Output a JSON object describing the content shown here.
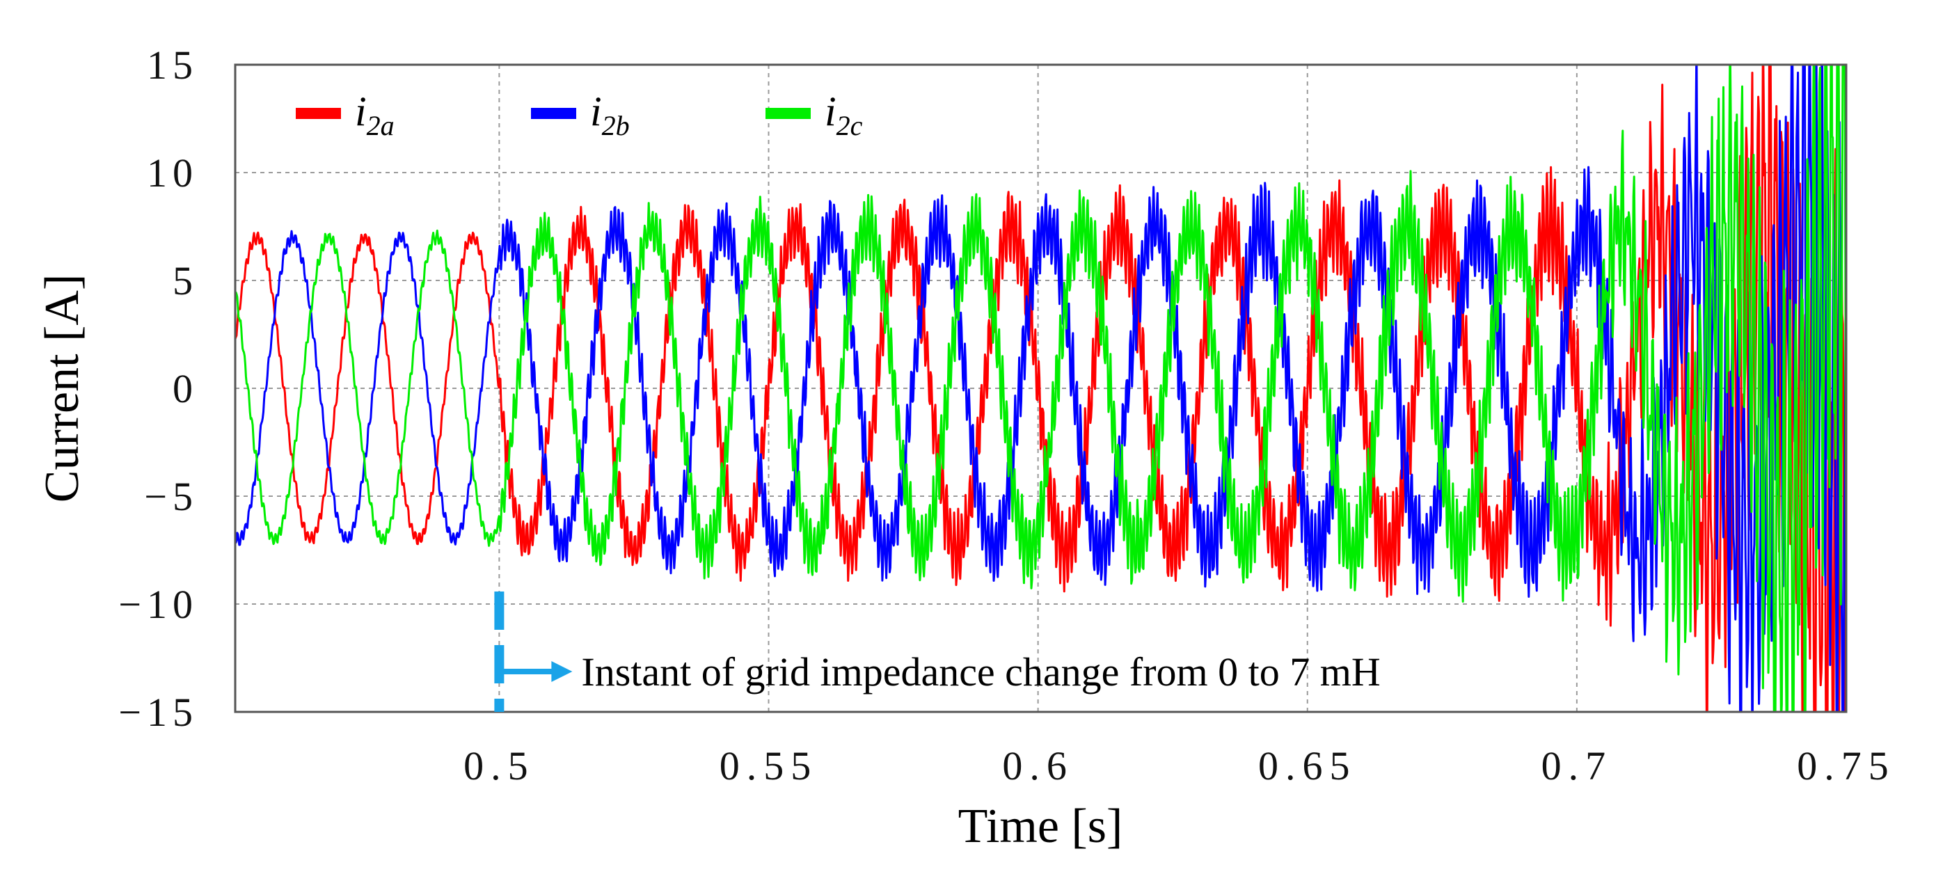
{
  "chart_data": {
    "type": "line",
    "title": "",
    "xlabel": "Time [s]",
    "ylabel": "Current [A]",
    "xlim": [
      0.451,
      0.75
    ],
    "ylim": [
      -15,
      15
    ],
    "x_ticks": [
      0.5,
      0.55,
      0.6,
      0.65,
      0.7,
      0.75
    ],
    "x_tick_labels": [
      "0.5",
      "0.55",
      "0.6",
      "0.65",
      "0.7",
      "0.75"
    ],
    "y_ticks": [
      15,
      10,
      5,
      0,
      -5,
      -10,
      -15
    ],
    "y_tick_labels": [
      "15",
      "10",
      "5",
      "0",
      "−5",
      "−10",
      "−15"
    ],
    "grid": true,
    "legend_position": "top-left",
    "series": [
      {
        "name": "i2a",
        "label_main": "i",
        "label_sub": "2a",
        "color": "#ff0000",
        "frequency_hz": 50,
        "phase_deg": 0,
        "amplitude_pre": 7,
        "amplitude_post": 7.5,
        "ripple_pre": 0.3,
        "ripple_post_start": 1.0,
        "ripple_post_end": 3.0,
        "instability_start": 0.7,
        "instability_growth": 12
      },
      {
        "name": "i2b",
        "label_main": "i",
        "label_sub": "2b",
        "color": "#0000ff",
        "frequency_hz": 50,
        "phase_deg": -120,
        "amplitude_pre": 7,
        "amplitude_post": 7.5,
        "ripple_pre": 0.3,
        "ripple_post_start": 1.0,
        "ripple_post_end": 3.0,
        "instability_start": 0.7,
        "instability_growth": 12
      },
      {
        "name": "i2c",
        "label_main": "i",
        "label_sub": "2c",
        "color": "#00ee00",
        "frequency_hz": 50,
        "phase_deg": 120,
        "amplitude_pre": 7,
        "amplitude_post": 7.5,
        "ripple_pre": 0.3,
        "ripple_post_start": 1.0,
        "ripple_post_end": 3.0,
        "instability_start": 0.7,
        "instability_growth": 12
      }
    ],
    "annotation": {
      "x": 0.5,
      "text": "Instant of grid impedance change from 0 to 7 mH",
      "color": "#1aa3e8"
    }
  }
}
